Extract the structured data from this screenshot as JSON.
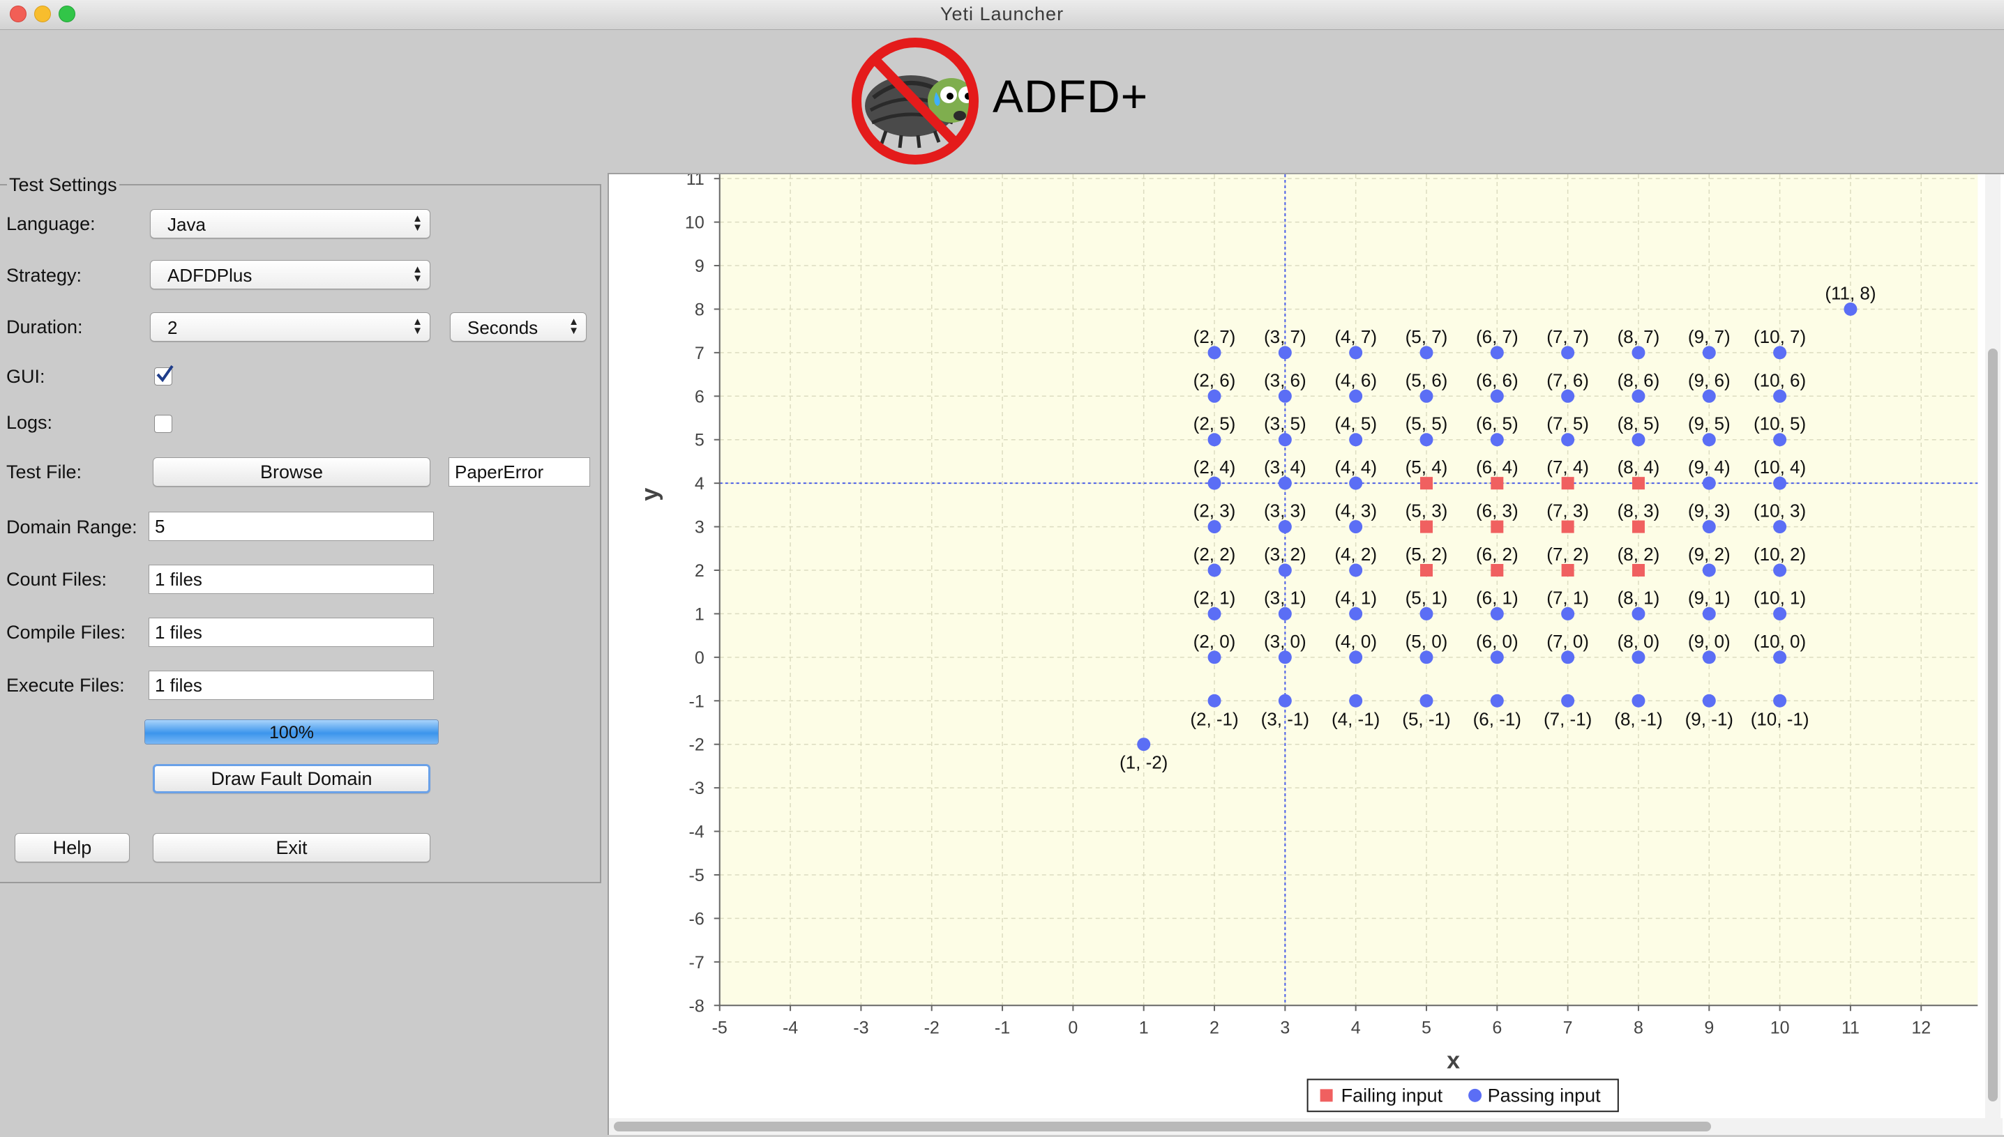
{
  "window": {
    "title": "Yeti Launcher"
  },
  "header": {
    "app_name": "ADFD+",
    "logo_icon": "no-bug-icon"
  },
  "settings": {
    "group_title": "Test Settings",
    "language": {
      "label": "Language:",
      "value": "Java"
    },
    "strategy": {
      "label": "Strategy:",
      "value": "ADFDPlus"
    },
    "duration": {
      "label": "Duration:",
      "value": "2",
      "unit": "Seconds"
    },
    "gui": {
      "label": "GUI:",
      "checked": true
    },
    "logs": {
      "label": "Logs:",
      "checked": false
    },
    "test_file": {
      "label": "Test File:",
      "browse_label": "Browse",
      "value": "PaperError"
    },
    "domain_range": {
      "label": "Domain Range:",
      "value": "5"
    },
    "count_files": {
      "label": "Count Files:",
      "value": "1 files"
    },
    "compile_files": {
      "label": "Compile Files:",
      "value": "1 files"
    },
    "execute_files": {
      "label": "Execute Files:",
      "value": "1 files"
    },
    "progress": {
      "value": 100,
      "text": "100%"
    },
    "draw_button": "Draw Fault Domain",
    "help_button": "Help",
    "exit_button": "Exit"
  },
  "chart_data": {
    "type": "scatter",
    "title": "",
    "xlabel": "x",
    "ylabel": "y",
    "xlim": [
      -5,
      12.8
    ],
    "ylim": [
      -8,
      11
    ],
    "xticks": [
      -5,
      -4,
      -3,
      -2,
      -1,
      0,
      1,
      2,
      3,
      4,
      5,
      6,
      7,
      8,
      9,
      10,
      11,
      12
    ],
    "yticks": [
      -8,
      -7,
      -6,
      -5,
      -4,
      -3,
      -2,
      -1,
      0,
      1,
      2,
      3,
      4,
      5,
      6,
      7,
      8,
      9,
      10,
      11
    ],
    "grid": true,
    "crosshair": {
      "x": 3,
      "y": 4
    },
    "background": "#fdfde6",
    "legend_position": "bottom-center",
    "series": [
      {
        "name": "Failing input",
        "marker": "square",
        "color": "#f06060",
        "points": [
          [
            5,
            2
          ],
          [
            6,
            2
          ],
          [
            7,
            2
          ],
          [
            8,
            2
          ],
          [
            5,
            3
          ],
          [
            6,
            3
          ],
          [
            7,
            3
          ],
          [
            8,
            3
          ],
          [
            5,
            4
          ],
          [
            6,
            4
          ],
          [
            7,
            4
          ],
          [
            8,
            4
          ]
        ]
      },
      {
        "name": "Passing input",
        "marker": "circle",
        "color": "#5b6ef5",
        "points": [
          [
            1,
            -2
          ],
          [
            11,
            8
          ],
          [
            2,
            -1
          ],
          [
            3,
            -1
          ],
          [
            4,
            -1
          ],
          [
            5,
            -1
          ],
          [
            6,
            -1
          ],
          [
            7,
            -1
          ],
          [
            8,
            -1
          ],
          [
            9,
            -1
          ],
          [
            10,
            -1
          ],
          [
            2,
            0
          ],
          [
            3,
            0
          ],
          [
            4,
            0
          ],
          [
            5,
            0
          ],
          [
            6,
            0
          ],
          [
            7,
            0
          ],
          [
            8,
            0
          ],
          [
            9,
            0
          ],
          [
            10,
            0
          ],
          [
            2,
            1
          ],
          [
            3,
            1
          ],
          [
            4,
            1
          ],
          [
            5,
            1
          ],
          [
            6,
            1
          ],
          [
            7,
            1
          ],
          [
            8,
            1
          ],
          [
            9,
            1
          ],
          [
            10,
            1
          ],
          [
            2,
            2
          ],
          [
            3,
            2
          ],
          [
            4,
            2
          ],
          [
            9,
            2
          ],
          [
            10,
            2
          ],
          [
            2,
            3
          ],
          [
            3,
            3
          ],
          [
            4,
            3
          ],
          [
            9,
            3
          ],
          [
            10,
            3
          ],
          [
            2,
            4
          ],
          [
            3,
            4
          ],
          [
            4,
            4
          ],
          [
            9,
            4
          ],
          [
            10,
            4
          ],
          [
            2,
            5
          ],
          [
            3,
            5
          ],
          [
            4,
            5
          ],
          [
            5,
            5
          ],
          [
            6,
            5
          ],
          [
            7,
            5
          ],
          [
            8,
            5
          ],
          [
            9,
            5
          ],
          [
            10,
            5
          ],
          [
            2,
            6
          ],
          [
            3,
            6
          ],
          [
            4,
            6
          ],
          [
            5,
            6
          ],
          [
            6,
            6
          ],
          [
            7,
            6
          ],
          [
            8,
            6
          ],
          [
            9,
            6
          ],
          [
            10,
            6
          ],
          [
            2,
            7
          ],
          [
            3,
            7
          ],
          [
            4,
            7
          ],
          [
            5,
            7
          ],
          [
            6,
            7
          ],
          [
            7,
            7
          ],
          [
            8,
            7
          ],
          [
            9,
            7
          ],
          [
            10,
            7
          ]
        ]
      }
    ]
  }
}
